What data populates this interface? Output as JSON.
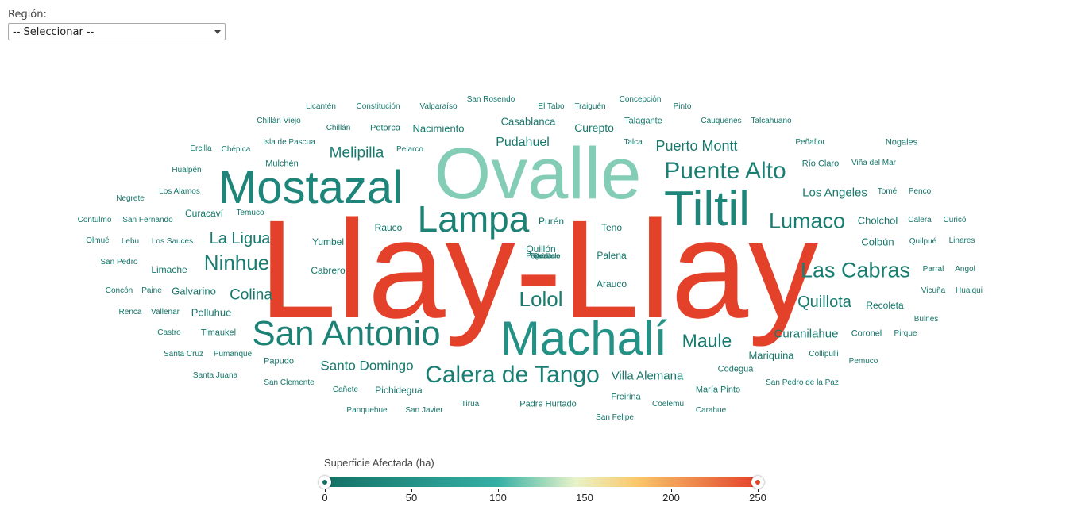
{
  "filter": {
    "region_label": "Región:",
    "selected": "-- Seleccionar --"
  },
  "colors": {
    "scale": [
      "#137266",
      "#35b0a5",
      "#e9f3c9",
      "#f9c86a",
      "#e4412a"
    ],
    "handle_min": "#137266",
    "handle_max": "#e4412a"
  },
  "legend": {
    "title": "Superficie Afectada (ha)",
    "min": 0,
    "max": 250,
    "ticks": [
      "0",
      "50",
      "100",
      "150",
      "200",
      "250"
    ],
    "range_selected": [
      0,
      250
    ]
  },
  "words": [
    {
      "text": "Llay-Llay",
      "value": 250
    },
    {
      "text": "Ovalle",
      "value": 130
    },
    {
      "text": "Mostazal",
      "value": 30
    },
    {
      "text": "Machalí",
      "value": 50
    },
    {
      "text": "San Antonio",
      "value": 25
    },
    {
      "text": "Tiltil",
      "value": 30
    },
    {
      "text": "Lampa",
      "value": 25
    },
    {
      "text": "Calera de Tango",
      "value": 20
    },
    {
      "text": "Puente Alto",
      "value": 20
    },
    {
      "text": "Lumaco",
      "value": 18
    },
    {
      "text": "Las Cabras",
      "value": 18
    },
    {
      "text": "Lolol",
      "value": 18
    },
    {
      "text": "Ninhue",
      "value": 18
    },
    {
      "text": "Maule",
      "value": 15
    },
    {
      "text": "Quillota",
      "value": 15
    },
    {
      "text": "La Ligua",
      "value": 15
    },
    {
      "text": "Colina",
      "value": 12
    },
    {
      "text": "Melipilla",
      "value": 12
    },
    {
      "text": "Puerto Montt",
      "value": 12
    },
    {
      "text": "Santo Domingo",
      "value": 12
    },
    {
      "text": "Pudahuel",
      "value": 10
    },
    {
      "text": "Los Angeles",
      "value": 10
    },
    {
      "text": "Curanilahue",
      "value": 10
    },
    {
      "text": "Villa Alemana",
      "value": 10
    },
    {
      "text": "Curepto",
      "value": 10
    },
    {
      "text": "Nacimiento",
      "value": 8
    },
    {
      "text": "Casablanca",
      "value": 8
    },
    {
      "text": "Cholchol",
      "value": 8
    },
    {
      "text": "Colbún",
      "value": 8
    },
    {
      "text": "Mariquina",
      "value": 8
    },
    {
      "text": "Galvarino",
      "value": 8
    },
    {
      "text": "Pelluhue",
      "value": 8
    },
    {
      "text": "Curacaví",
      "value": 8
    },
    {
      "text": "Recoleta",
      "value": 8
    },
    {
      "text": "Quillón",
      "value": 8
    },
    {
      "text": "Palena",
      "value": 7
    },
    {
      "text": "Arauco",
      "value": 7
    },
    {
      "text": "Rauco",
      "value": 7
    },
    {
      "text": "Purén",
      "value": 7
    },
    {
      "text": "Teno",
      "value": 7
    },
    {
      "text": "Yumbel",
      "value": 7
    },
    {
      "text": "Cabrero",
      "value": 7
    },
    {
      "text": "Limache",
      "value": 7
    },
    {
      "text": "Pichidegua",
      "value": 7
    },
    {
      "text": "Codegua",
      "value": 7
    },
    {
      "text": "Mulchén",
      "value": 7
    },
    {
      "text": "Petorca",
      "value": 6
    },
    {
      "text": "Talagante",
      "value": 6
    },
    {
      "text": "Río Claro",
      "value": 6
    },
    {
      "text": "Nogales",
      "value": 6
    },
    {
      "text": "Timaukel",
      "value": 6
    },
    {
      "text": "Papudo",
      "value": 6
    },
    {
      "text": "Padre Hurtado",
      "value": 6
    },
    {
      "text": "Freirina",
      "value": 6
    },
    {
      "text": "María Pinto",
      "value": 6
    },
    {
      "text": "Coronel",
      "value": 6
    },
    {
      "text": "Pumanque",
      "value": 6
    },
    {
      "text": "Temuco",
      "value": 6
    },
    {
      "text": "San Fernando",
      "value": 6
    },
    {
      "text": "Los Sauces",
      "value": 6
    },
    {
      "text": "Paine",
      "value": 6
    },
    {
      "text": "Licantén",
      "value": 5
    },
    {
      "text": "Constitución",
      "value": 5
    },
    {
      "text": "Valparaíso",
      "value": 5
    },
    {
      "text": "San Rosendo",
      "value": 5
    },
    {
      "text": "El Tabo",
      "value": 5
    },
    {
      "text": "Traiguén",
      "value": 5
    },
    {
      "text": "Concepción",
      "value": 5
    },
    {
      "text": "Pinto",
      "value": 5
    },
    {
      "text": "Chillán Viejo",
      "value": 5
    },
    {
      "text": "Chillán",
      "value": 5
    },
    {
      "text": "Cauquenes",
      "value": 5
    },
    {
      "text": "Talcahuano",
      "value": 5
    },
    {
      "text": "Ercilla",
      "value": 5
    },
    {
      "text": "Chépica",
      "value": 5
    },
    {
      "text": "Isla de Pascua",
      "value": 5
    },
    {
      "text": "Pelarco",
      "value": 5
    },
    {
      "text": "Talca",
      "value": 5
    },
    {
      "text": "Peñaflor",
      "value": 5
    },
    {
      "text": "Viña del Mar",
      "value": 5
    },
    {
      "text": "Hualpén",
      "value": 5
    },
    {
      "text": "Los Alamos",
      "value": 5
    },
    {
      "text": "Negrete",
      "value": 5
    },
    {
      "text": "Tomé",
      "value": 5
    },
    {
      "text": "Penco",
      "value": 5
    },
    {
      "text": "Contulmo",
      "value": 5
    },
    {
      "text": "Calera",
      "value": 5
    },
    {
      "text": "Curicó",
      "value": 5
    },
    {
      "text": "Olmué",
      "value": 5
    },
    {
      "text": "Lebu",
      "value": 5
    },
    {
      "text": "Quilpué",
      "value": 5
    },
    {
      "text": "Linares",
      "value": 5
    },
    {
      "text": "San Pedro",
      "value": 5
    },
    {
      "text": "Parral",
      "value": 5
    },
    {
      "text": "Angol",
      "value": 5
    },
    {
      "text": "Concón",
      "value": 5
    },
    {
      "text": "Vicuña",
      "value": 5
    },
    {
      "text": "Hualqui",
      "value": 5
    },
    {
      "text": "Renca",
      "value": 5
    },
    {
      "text": "Vallenar",
      "value": 5
    },
    {
      "text": "Bulnes",
      "value": 5
    },
    {
      "text": "Castro",
      "value": 5
    },
    {
      "text": "Pirque",
      "value": 5
    },
    {
      "text": "Santa Cruz",
      "value": 5
    },
    {
      "text": "Collipulli",
      "value": 5
    },
    {
      "text": "Pemuco",
      "value": 5
    },
    {
      "text": "Santa Juana",
      "value": 5
    },
    {
      "text": "San Clemente",
      "value": 5
    },
    {
      "text": "Cañete",
      "value": 5
    },
    {
      "text": "San Pedro de la Paz",
      "value": 5
    },
    {
      "text": "Panquehue",
      "value": 5
    },
    {
      "text": "San Javier",
      "value": 5
    },
    {
      "text": "Tirúa",
      "value": 5
    },
    {
      "text": "Coelemu",
      "value": 5
    },
    {
      "text": "Carahue",
      "value": 5
    },
    {
      "text": "San Felipe",
      "value": 5
    },
    {
      "text": "Florida",
      "value": 4
    },
    {
      "text": "Portezuelo",
      "value": 4
    },
    {
      "text": "Quirihue",
      "value": 4
    }
  ]
}
